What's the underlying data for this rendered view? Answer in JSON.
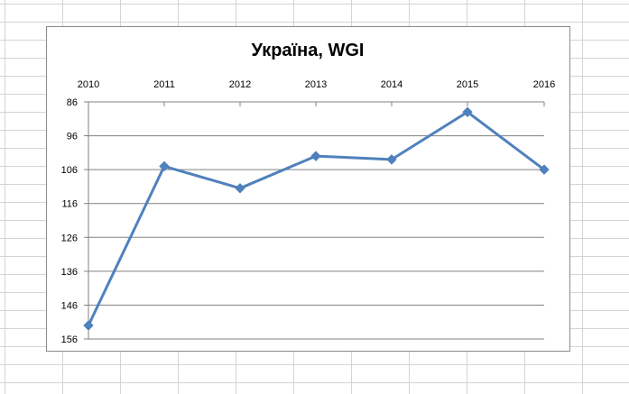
{
  "chart_data": {
    "type": "line",
    "title": "Україна, WGI",
    "xlabel": "",
    "ylabel": "",
    "categories": [
      "2010",
      "2011",
      "2012",
      "2013",
      "2014",
      "2015",
      "2016"
    ],
    "series": [
      {
        "values": [
          152,
          105,
          111.5,
          102,
          103,
          89,
          106
        ]
      }
    ],
    "y_ticks": [
      "86",
      "96",
      "106",
      "116",
      "126",
      "136",
      "146",
      "156"
    ],
    "ylim": [
      86,
      156
    ],
    "y_axis_reversed": true,
    "x_axis_position": "top",
    "grid": true,
    "legend": "none",
    "series_color": "#4f81bd"
  }
}
